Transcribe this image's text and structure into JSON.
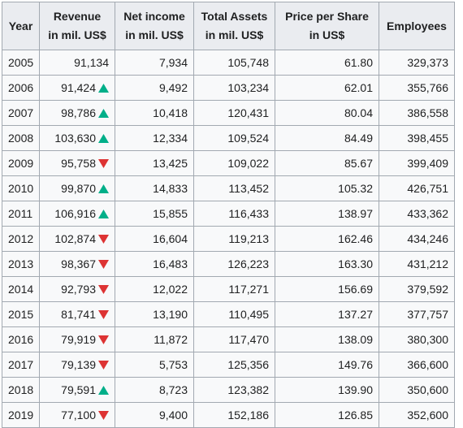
{
  "table": {
    "headers": [
      {
        "line1": "Year",
        "line2": ""
      },
      {
        "line1": "Revenue",
        "line2": "in mil. US$"
      },
      {
        "line1": "Net income",
        "line2": "in mil. US$"
      },
      {
        "line1": "Total Assets",
        "line2": "in mil. US$"
      },
      {
        "line1": "Price per Share",
        "line2": "in US$"
      },
      {
        "line1": "Employees",
        "line2": ""
      }
    ],
    "rows": [
      {
        "year": "2005",
        "revenue": "91,134",
        "trend": "",
        "net_income": "7,934",
        "total_assets": "105,748",
        "price": "61.80",
        "employees": "329,373"
      },
      {
        "year": "2006",
        "revenue": "91,424",
        "trend": "up",
        "net_income": "9,492",
        "total_assets": "103,234",
        "price": "62.01",
        "employees": "355,766"
      },
      {
        "year": "2007",
        "revenue": "98,786",
        "trend": "up",
        "net_income": "10,418",
        "total_assets": "120,431",
        "price": "80.04",
        "employees": "386,558"
      },
      {
        "year": "2008",
        "revenue": "103,630",
        "trend": "up",
        "net_income": "12,334",
        "total_assets": "109,524",
        "price": "84.49",
        "employees": "398,455"
      },
      {
        "year": "2009",
        "revenue": "95,758",
        "trend": "down",
        "net_income": "13,425",
        "total_assets": "109,022",
        "price": "85.67",
        "employees": "399,409"
      },
      {
        "year": "2010",
        "revenue": "99,870",
        "trend": "up",
        "net_income": "14,833",
        "total_assets": "113,452",
        "price": "105.32",
        "employees": "426,751"
      },
      {
        "year": "2011",
        "revenue": "106,916",
        "trend": "up",
        "net_income": "15,855",
        "total_assets": "116,433",
        "price": "138.97",
        "employees": "433,362"
      },
      {
        "year": "2012",
        "revenue": "102,874",
        "trend": "down",
        "net_income": "16,604",
        "total_assets": "119,213",
        "price": "162.46",
        "employees": "434,246"
      },
      {
        "year": "2013",
        "revenue": "98,367",
        "trend": "down",
        "net_income": "16,483",
        "total_assets": "126,223",
        "price": "163.30",
        "employees": "431,212"
      },
      {
        "year": "2014",
        "revenue": "92,793",
        "trend": "down",
        "net_income": "12,022",
        "total_assets": "117,271",
        "price": "156.69",
        "employees": "379,592"
      },
      {
        "year": "2015",
        "revenue": "81,741",
        "trend": "down",
        "net_income": "13,190",
        "total_assets": "110,495",
        "price": "137.27",
        "employees": "377,757"
      },
      {
        "year": "2016",
        "revenue": "79,919",
        "trend": "down",
        "net_income": "11,872",
        "total_assets": "117,470",
        "price": "138.09",
        "employees": "380,300"
      },
      {
        "year": "2017",
        "revenue": "79,139",
        "trend": "down",
        "net_income": "5,753",
        "total_assets": "125,356",
        "price": "149.76",
        "employees": "366,600"
      },
      {
        "year": "2018",
        "revenue": "79,591",
        "trend": "up",
        "net_income": "8,723",
        "total_assets": "123,382",
        "price": "139.90",
        "employees": "350,600"
      },
      {
        "year": "2019",
        "revenue": "77,100",
        "trend": "down",
        "net_income": "9,400",
        "total_assets": "152,186",
        "price": "126.85",
        "employees": "352,600"
      }
    ]
  },
  "icons": {
    "up": "triangle-up-icon",
    "down": "triangle-down-icon"
  },
  "colors": {
    "up": "#00af89",
    "down": "#dd3333",
    "header_bg": "#eaecf0",
    "cell_bg": "#f8f9fa",
    "border": "#a2a9b1"
  }
}
